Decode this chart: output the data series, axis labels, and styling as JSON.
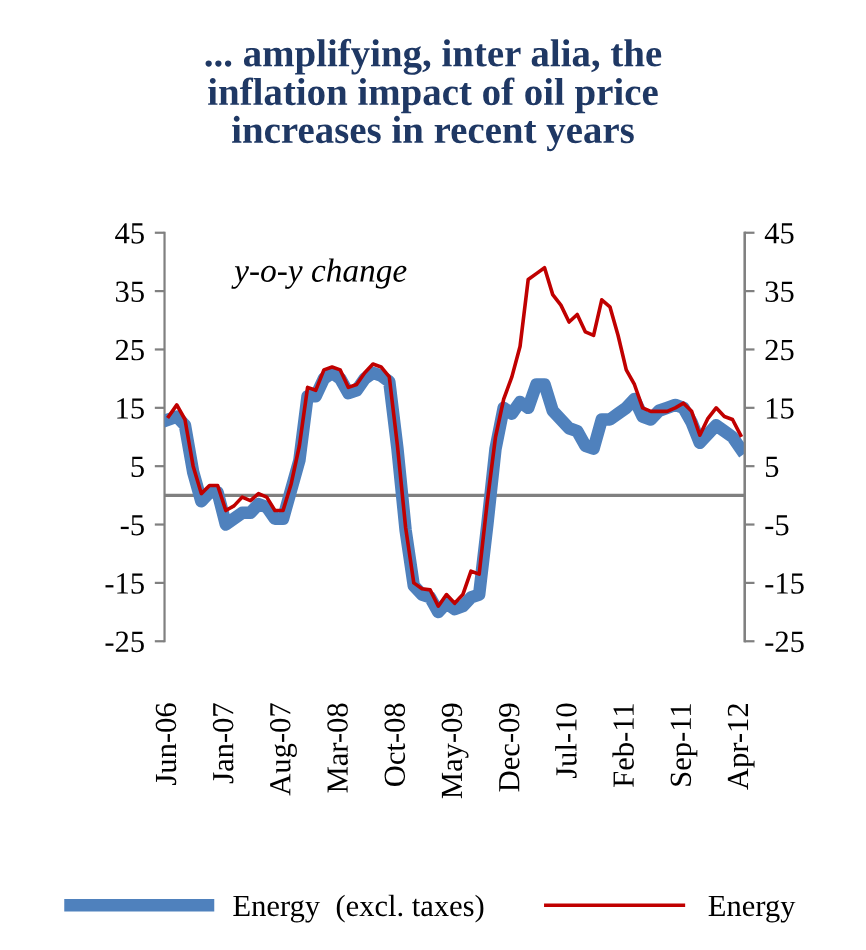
{
  "chart_data": {
    "type": "line",
    "title": "... amplifying, inter alia, the\ninflation impact of oil price\nincreases in recent years",
    "annotations": [
      "y-o-y change"
    ],
    "categories": [
      "Jun-06",
      null,
      null,
      null,
      null,
      null,
      null,
      "Jan-07",
      null,
      null,
      null,
      null,
      null,
      null,
      "Aug-07",
      null,
      null,
      null,
      null,
      null,
      null,
      "Mar-08",
      null,
      null,
      null,
      null,
      null,
      null,
      "Oct-08",
      null,
      null,
      null,
      null,
      null,
      null,
      "May-09",
      null,
      null,
      null,
      null,
      null,
      null,
      "Dec-09",
      null,
      null,
      null,
      null,
      null,
      null,
      "Jul-10",
      null,
      null,
      null,
      null,
      null,
      null,
      "Feb-11",
      null,
      null,
      null,
      null,
      null,
      null,
      "Sep-11",
      null,
      null,
      null,
      null,
      null,
      null,
      "Apr-12"
    ],
    "series": [
      {
        "name": "Energy  (excl. taxes)",
        "color": "#4f81bd",
        "values": [
          13,
          13.5,
          12,
          4,
          -1,
          0.5,
          0.5,
          -5,
          -4,
          -3,
          -3,
          -1.5,
          -2,
          -4,
          -4,
          1,
          6,
          17,
          17,
          20,
          21,
          20,
          17.5,
          18,
          20,
          21,
          20.5,
          19.5,
          8,
          -6,
          -15.5,
          -17,
          -17.5,
          -20,
          -18.5,
          -19.5,
          -19,
          -17.5,
          -17,
          -5,
          8,
          15,
          14,
          16,
          15,
          19,
          19,
          14.5,
          13,
          11.5,
          11,
          8.5,
          8,
          13,
          13,
          14,
          15,
          16.5,
          13.5,
          13,
          14.5,
          15,
          15.5,
          15,
          12.5,
          9,
          10.5,
          12,
          11,
          10,
          8
        ]
      },
      {
        "name": "Energy",
        "color": "#c00000",
        "values": [
          13.5,
          15.5,
          13,
          5,
          0.3,
          1.7,
          1.7,
          -2.6,
          -1.8,
          -0.3,
          -0.9,
          0.3,
          -0.3,
          -2.6,
          -2.6,
          2,
          8.5,
          18.5,
          18,
          21.5,
          22,
          21.5,
          18.5,
          19,
          21,
          22.5,
          22,
          20.3,
          8.5,
          -5.5,
          -15,
          -16,
          -16.2,
          -19,
          -17,
          -18.5,
          -17,
          -13,
          -13.5,
          -1,
          10,
          16.5,
          20.3,
          25.5,
          37,
          38,
          39,
          34.4,
          32.6,
          29.7,
          31,
          28,
          27.4,
          33.5,
          32.3,
          27.4,
          21.5,
          19,
          15,
          14.4,
          14.4,
          14.4,
          15,
          15.8,
          14.4,
          10.3,
          13.2,
          15,
          13.5,
          13,
          10.3
        ]
      }
    ],
    "ylim": [
      -25,
      45
    ],
    "yticks": [
      -25,
      -15,
      -5,
      5,
      15,
      25,
      35,
      45
    ],
    "y2lim": [
      -25,
      45
    ],
    "y2ticks": [
      -25,
      -15,
      -5,
      5,
      15,
      25,
      35,
      45
    ],
    "ref_lines": [
      {
        "axis": "y",
        "value": 0,
        "color": "#808080"
      }
    ],
    "grid": false,
    "legend": "bottom"
  }
}
